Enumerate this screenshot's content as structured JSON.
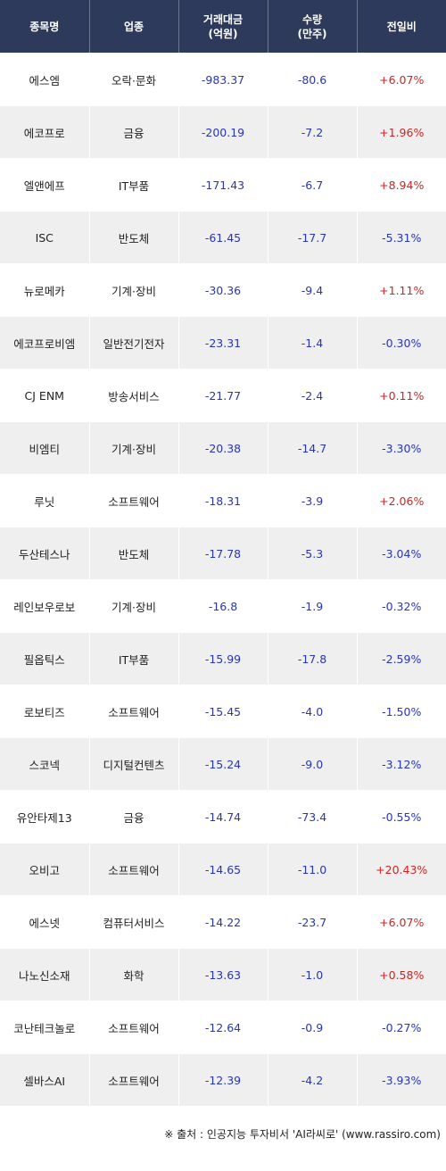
{
  "header": {
    "name": "종목명",
    "sector": "업종",
    "amount_line1": "거래대금",
    "amount_line2": "(억원)",
    "volume_line1": "수량",
    "volume_line2": "(만주)",
    "change": "전일비"
  },
  "rows": [
    {
      "name": "에스엠",
      "sector": "오락·문화",
      "amount": "-983.37",
      "volume": "-80.6",
      "change": "+6.07%",
      "dir": "up"
    },
    {
      "name": "에코프로",
      "sector": "금융",
      "amount": "-200.19",
      "volume": "-7.2",
      "change": "+1.96%",
      "dir": "up"
    },
    {
      "name": "엘앤에프",
      "sector": "IT부품",
      "amount": "-171.43",
      "volume": "-6.7",
      "change": "+8.94%",
      "dir": "up"
    },
    {
      "name": "ISC",
      "sector": "반도체",
      "amount": "-61.45",
      "volume": "-17.7",
      "change": "-5.31%",
      "dir": "down"
    },
    {
      "name": "뉴로메카",
      "sector": "기계·장비",
      "amount": "-30.36",
      "volume": "-9.4",
      "change": "+1.11%",
      "dir": "up"
    },
    {
      "name": "에코프로비엠",
      "sector": "일반전기전자",
      "amount": "-23.31",
      "volume": "-1.4",
      "change": "-0.30%",
      "dir": "down"
    },
    {
      "name": "CJ ENM",
      "sector": "방송서비스",
      "amount": "-21.77",
      "volume": "-2.4",
      "change": "+0.11%",
      "dir": "up"
    },
    {
      "name": "비엠티",
      "sector": "기계·장비",
      "amount": "-20.38",
      "volume": "-14.7",
      "change": "-3.30%",
      "dir": "down"
    },
    {
      "name": "루닛",
      "sector": "소프트웨어",
      "amount": "-18.31",
      "volume": "-3.9",
      "change": "+2.06%",
      "dir": "up"
    },
    {
      "name": "두산테스나",
      "sector": "반도체",
      "amount": "-17.78",
      "volume": "-5.3",
      "change": "-3.04%",
      "dir": "down"
    },
    {
      "name": "레인보우로보",
      "sector": "기계·장비",
      "amount": "-16.8",
      "volume": "-1.9",
      "change": "-0.32%",
      "dir": "down"
    },
    {
      "name": "필옵틱스",
      "sector": "IT부품",
      "amount": "-15.99",
      "volume": "-17.8",
      "change": "-2.59%",
      "dir": "down"
    },
    {
      "name": "로보티즈",
      "sector": "소프트웨어",
      "amount": "-15.45",
      "volume": "-4.0",
      "change": "-1.50%",
      "dir": "down"
    },
    {
      "name": "스코넥",
      "sector": "디지털컨텐츠",
      "amount": "-15.24",
      "volume": "-9.0",
      "change": "-3.12%",
      "dir": "down"
    },
    {
      "name": "유안타제13",
      "sector": "금융",
      "amount": "-14.74",
      "volume": "-73.4",
      "change": "-0.55%",
      "dir": "down"
    },
    {
      "name": "오비고",
      "sector": "소프트웨어",
      "amount": "-14.65",
      "volume": "-11.0",
      "change": "+20.43%",
      "dir": "up"
    },
    {
      "name": "에스넷",
      "sector": "컴퓨터서비스",
      "amount": "-14.22",
      "volume": "-23.7",
      "change": "+6.07%",
      "dir": "up"
    },
    {
      "name": "나노신소재",
      "sector": "화학",
      "amount": "-13.63",
      "volume": "-1.0",
      "change": "+0.58%",
      "dir": "up"
    },
    {
      "name": "코난테크놀로",
      "sector": "소프트웨어",
      "amount": "-12.64",
      "volume": "-0.9",
      "change": "-0.27%",
      "dir": "down"
    },
    {
      "name": "셀바스AI",
      "sector": "소프트웨어",
      "amount": "-12.39",
      "volume": "-4.2",
      "change": "-3.93%",
      "dir": "down"
    }
  ],
  "colors": {
    "header_bg": "#2d3a5c",
    "up": "#d62020",
    "down": "#2a35b0",
    "stripe": "#efefef"
  },
  "footer": {
    "source": "※ 출처 : 인공지능 투자비서 'AI라씨로' (www.rassiro.com)"
  }
}
